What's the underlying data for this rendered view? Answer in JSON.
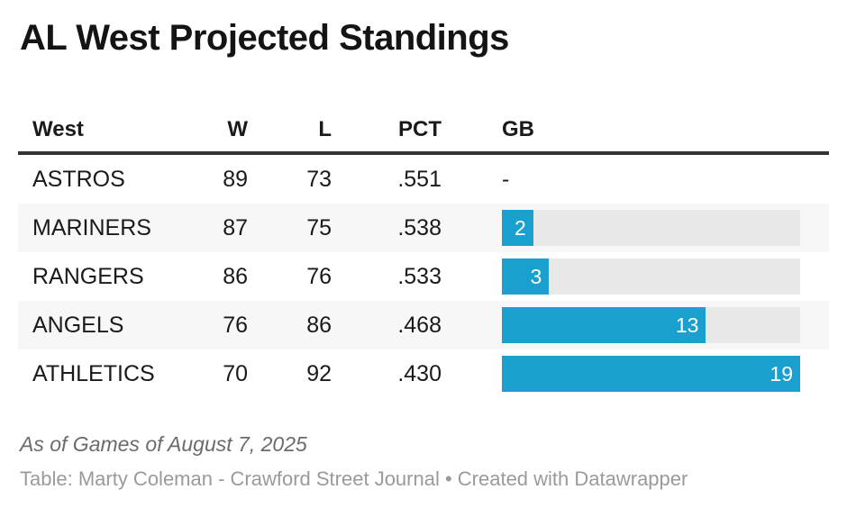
{
  "title": "AL West Projected Standings",
  "chart_data": {
    "type": "table",
    "title": "AL West Projected Standings",
    "columns": [
      "West",
      "W",
      "L",
      "PCT",
      "GB"
    ],
    "rows": [
      {
        "team": "ASTROS",
        "wins": 89,
        "losses": 73,
        "pct": ".551",
        "gb": null,
        "gb_text": "-"
      },
      {
        "team": "MARINERS",
        "wins": 87,
        "losses": 75,
        "pct": ".538",
        "gb": 2,
        "gb_text": "2"
      },
      {
        "team": "RANGERS",
        "wins": 86,
        "losses": 76,
        "pct": ".533",
        "gb": 3,
        "gb_text": "3"
      },
      {
        "team": "ANGELS",
        "wins": 76,
        "losses": 86,
        "pct": ".468",
        "gb": 13,
        "gb_text": "13"
      },
      {
        "team": "ATHLETICS",
        "wins": 70,
        "losses": 92,
        "pct": ".430",
        "gb": 19,
        "gb_text": "19"
      }
    ],
    "gb_bar_scale_max": 19,
    "layout_hints": {
      "gb_column_style": "bar-in-cell",
      "striped_rows": true,
      "legend": "none"
    }
  },
  "footer": {
    "notes": "As of Games of August 7, 2025",
    "attribution": "Table: Marty Coleman - Crawford Street Journal • Created with Datawrapper"
  },
  "colors": {
    "bar": "#1aa0ce",
    "bar_track": "#e8e8e8",
    "row_stripe": "#f7f7f7",
    "header_rule": "#333333",
    "body_text": "#1a1a1a",
    "notes_text": "#6b6b6b",
    "attribution_text": "#9a9a9a"
  }
}
